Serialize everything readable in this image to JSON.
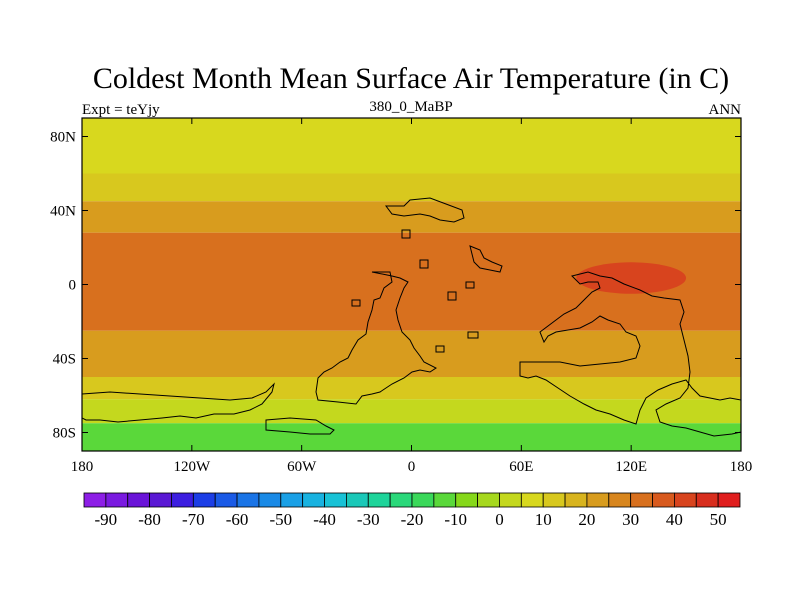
{
  "chart_data": {
    "type": "heatmap",
    "title": "Coldest Month Mean Surface Air Temperature (in C)",
    "left_label": "Expt = teYjy",
    "center_label": "380_0_MaBP",
    "right_label": "ANN",
    "x_ticks": [
      "180",
      "120W",
      "60W",
      "0",
      "60E",
      "120E",
      "180"
    ],
    "x_tick_values": [
      -180,
      -120,
      -60,
      0,
      60,
      120,
      180
    ],
    "y_ticks": [
      "80N",
      "40N",
      "0",
      "40S",
      "80S"
    ],
    "y_tick_values": [
      80,
      40,
      0,
      -40,
      -80
    ],
    "xlim": [
      -180,
      180
    ],
    "ylim": [
      -90,
      90
    ],
    "colorbar": {
      "labels": [
        "-90",
        "-80",
        "-70",
        "-60",
        "-50",
        "-40",
        "-30",
        "-20",
        "-10",
        "0",
        "10",
        "20",
        "30",
        "40",
        "50"
      ],
      "colors": [
        "#8d1ee6",
        "#7a1ae0",
        "#6a14d8",
        "#5a18d4",
        "#3c1ee0",
        "#1c3ee6",
        "#1a5ae6",
        "#1a74e6",
        "#1a8ae6",
        "#1aa0e6",
        "#18b2e0",
        "#18c2d6",
        "#1ac8b8",
        "#1ed49a",
        "#2ad87a",
        "#3ad85a",
        "#5ad83a",
        "#86d81a",
        "#a6d81e",
        "#c4d81e",
        "#d8d81e",
        "#d8c81e",
        "#d8b41e",
        "#d89c1e",
        "#d8861e",
        "#d8701e",
        "#d85a1e",
        "#d8441e",
        "#d82e1e",
        "#e01e1e"
      ]
    },
    "temperature_bands": [
      {
        "lat_range": [
          90,
          60
        ],
        "value_c": 5
      },
      {
        "lat_range": [
          60,
          45
        ],
        "value_c": 12
      },
      {
        "lat_range": [
          45,
          28
        ],
        "value_c": 20
      },
      {
        "lat_range": [
          28,
          -25
        ],
        "value_c": 30
      },
      {
        "lat_range": [
          -25,
          -50
        ],
        "value_c": 22
      },
      {
        "lat_range": [
          -50,
          -62
        ],
        "value_c": 12
      },
      {
        "lat_range": [
          -62,
          -75
        ],
        "value_c": 0
      },
      {
        "lat_range": [
          -75,
          -90
        ],
        "value_c": -12
      }
    ],
    "warm_core": {
      "lon_range": [
        90,
        150
      ],
      "lat_range": [
        12,
        -5
      ],
      "value_c": 42
    }
  }
}
